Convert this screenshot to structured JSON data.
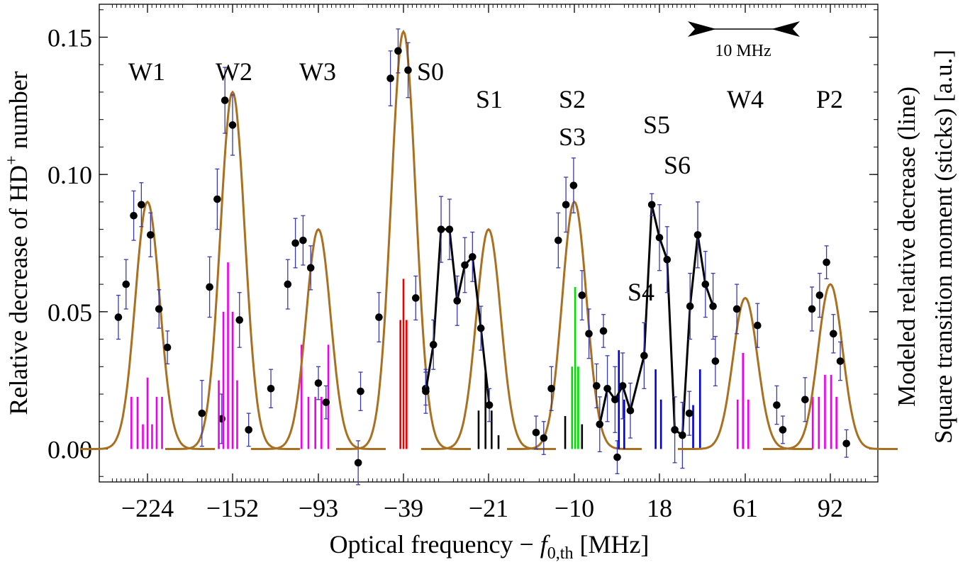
{
  "chart_data": {
    "type": "scatter",
    "y_axis_label": "Relative decrease of HD⁺ number",
    "y_axis_label_parts": {
      "pre": "Relative decrease of HD",
      "sup": "+",
      "post": " number"
    },
    "right_axis_label_line1": "Modeled relative decrease (line)",
    "right_axis_label_line2": "Square transition moment (sticks) [a.u.]",
    "x_axis_label": "Optical frequency − f0,th [MHz]",
    "x_axis_label_parts": {
      "pre": "Optical frequency − ",
      "italic": "f",
      "sub": "0,th",
      "post": " [MHz]"
    },
    "ylim": [
      -0.012,
      0.162
    ],
    "yticks": [
      {
        "value": 0.0,
        "label": "0.00"
      },
      {
        "value": 0.05,
        "label": "0.05"
      },
      {
        "value": 0.1,
        "label": "0.10"
      },
      {
        "value": 0.15,
        "label": "0.15"
      }
    ],
    "scale_bar_label": "10 MHz",
    "colors": {
      "model": "#a87020",
      "points": "#000000",
      "errorbars": "#3a3aaa",
      "stick_magenta": "#ee00ee",
      "stick_red": "#ee0000",
      "stick_black": "#000000",
      "stick_green": "#00dd00",
      "stick_blue": "#0000dd",
      "fit_black": "#000000"
    },
    "panels": [
      {
        "tick": "-224",
        "tick_label": "−224",
        "center_offset": 0.0,
        "labels": [
          {
            "text": "W1"
          }
        ],
        "model": [
          {
            "amp": 0.09,
            "center": 0.0,
            "sigma": 1.6
          }
        ],
        "points": [
          [
            -3.8,
            0.048,
            0.008
          ],
          [
            -2.8,
            0.06,
            0.009
          ],
          [
            -1.8,
            0.085,
            0.009
          ],
          [
            -0.8,
            0.089,
            0.008
          ],
          [
            0.4,
            0.078,
            0.008
          ],
          [
            1.5,
            0.051,
            0.007
          ],
          [
            2.6,
            0.037,
            0.006
          ],
          [
            9.7,
            0.011,
            0.009
          ]
        ],
        "sticks": {
          "color": "magenta",
          "lines": [
            [
              -2.1,
              0.019
            ],
            [
              -1.3,
              0.019
            ],
            [
              -0.6,
              0.009
            ],
            [
              0.0,
              0.026
            ],
            [
              0.6,
              0.009
            ],
            [
              1.2,
              0.019
            ],
            [
              1.9,
              0.019
            ]
          ]
        }
      },
      {
        "tick": "-152",
        "tick_label": "−152",
        "center_offset": 0.0,
        "labels": [
          {
            "text": "W2"
          }
        ],
        "model": [
          {
            "amp": 0.13,
            "center": 0.0,
            "sigma": 1.6
          }
        ],
        "points": [
          [
            -4.0,
            0.013,
            0.012
          ],
          [
            -3.0,
            0.059,
            0.011
          ],
          [
            -2.0,
            0.091,
            0.011
          ],
          [
            -1.0,
            0.127,
            0.012
          ],
          [
            0.0,
            0.118,
            0.011
          ],
          [
            0.9,
            0.047,
            0.01
          ],
          [
            2.1,
            0.007,
            0.006
          ]
        ],
        "sticks": {
          "color": "magenta",
          "lines": [
            [
              -1.8,
              0.025
            ],
            [
              -1.2,
              0.05
            ],
            [
              -0.6,
              0.068
            ],
            [
              0.0,
              0.05
            ],
            [
              0.6,
              0.025
            ]
          ]
        }
      },
      {
        "tick": "-93",
        "tick_label": "−93",
        "center_offset": 0.0,
        "labels": [
          {
            "text": "W3"
          }
        ],
        "model": [
          {
            "amp": 0.08,
            "center": 0.0,
            "sigma": 1.6
          }
        ],
        "points": [
          [
            -6.2,
            0.022,
            0.007
          ],
          [
            -4.0,
            0.06,
            0.009
          ],
          [
            -3.0,
            0.075,
            0.009
          ],
          [
            -2.0,
            0.076,
            0.009
          ],
          [
            -1.0,
            0.066,
            0.008
          ],
          [
            0.0,
            0.024,
            0.006
          ],
          [
            1.0,
            0.017,
            0.006
          ],
          [
            5.2,
            -0.005,
            0.008
          ]
        ],
        "sticks": {
          "color": "magenta",
          "lines": [
            [
              -2.2,
              0.038
            ],
            [
              -1.3,
              0.019
            ],
            [
              -0.4,
              0.019
            ],
            [
              0.4,
              0.019
            ],
            [
              1.3,
              0.038
            ]
          ]
        }
      },
      {
        "tick": "-39",
        "tick_label": "−39",
        "center_offset": 0.0,
        "labels": [
          {
            "text": "S0"
          }
        ],
        "model": [
          {
            "amp": 0.152,
            "center": 0.0,
            "sigma": 1.6
          }
        ],
        "points": [
          [
            -5.6,
            0.021,
            0.007
          ],
          [
            -3.2,
            0.048,
            0.009
          ],
          [
            -1.7,
            0.135,
            0.01
          ],
          [
            -0.7,
            0.145,
            0.008
          ],
          [
            0.6,
            0.138,
            0.01
          ],
          [
            1.6,
            0.055,
            0.008
          ],
          [
            2.9,
            0.022,
            0.006
          ]
        ],
        "sticks": {
          "color": "red",
          "lines": [
            [
              -0.4,
              0.047
            ],
            [
              0.0,
              0.062
            ],
            [
              0.4,
              0.047
            ]
          ]
        }
      },
      {
        "tick": "-21",
        "tick_label": "−21",
        "center_offset": 0.0,
        "labels": [
          {
            "text": "S1"
          }
        ],
        "model": [
          {
            "amp": 0.08,
            "center": 0.0,
            "sigma": 1.6
          }
        ],
        "points": [
          [
            -8.2,
            0.021,
            0.008
          ],
          [
            -7.2,
            0.038,
            0.009
          ],
          [
            -6.2,
            0.08,
            0.012
          ],
          [
            -5.1,
            0.08,
            0.011
          ],
          [
            -4.1,
            0.054,
            0.009
          ],
          [
            -3.1,
            0.067,
            0.01
          ],
          [
            -2.1,
            0.07,
            0.009
          ],
          [
            -1.0,
            0.044,
            0.008
          ],
          [
            0.1,
            0.016,
            0.006
          ]
        ],
        "fit_line": [
          [
            -8.2,
            0.021
          ],
          [
            -7.2,
            0.038
          ],
          [
            -6.2,
            0.08
          ],
          [
            -5.1,
            0.08
          ],
          [
            -4.1,
            0.054
          ],
          [
            -3.1,
            0.067
          ],
          [
            -2.1,
            0.07
          ],
          [
            -1.0,
            0.044
          ],
          [
            0.1,
            0.016
          ]
        ],
        "sticks": {
          "color": "black",
          "lines": [
            [
              -1.3,
              0.014
            ],
            [
              -0.4,
              0.028
            ],
            [
              0.4,
              0.014
            ],
            [
              1.3,
              0.005
            ]
          ]
        }
      },
      {
        "tick": "-10",
        "tick_label": "−10",
        "center_offset": 0.0,
        "labels": [
          {
            "text": "S2"
          },
          {
            "text": "S3"
          }
        ],
        "model": [
          {
            "amp": 0.09,
            "center": 0.0,
            "sigma": 1.6
          }
        ],
        "points": [
          [
            -5.0,
            0.006,
            0.006
          ],
          [
            -4.0,
            0.004,
            0.006
          ],
          [
            -3.0,
            0.022,
            0.008
          ],
          [
            -2.1,
            0.076,
            0.01
          ],
          [
            -1.1,
            0.089,
            0.01
          ],
          [
            -0.1,
            0.096,
            0.01
          ],
          [
            1.0,
            0.056,
            0.009
          ],
          [
            1.9,
            0.042,
            0.009
          ],
          [
            2.9,
            0.023,
            0.008
          ],
          [
            3.8,
            0.043,
            0.006
          ],
          [
            5.6,
            -0.003,
            0.006
          ]
        ],
        "sticks": {
          "color": "green",
          "lines": [
            [
              -0.3,
              0.03
            ],
            [
              0.1,
              0.059
            ],
            [
              0.5,
              0.03
            ]
          ],
          "extra_color": "black",
          "extra": [
            [
              -1.2,
              0.012
            ],
            [
              1.0,
              0.009
            ]
          ]
        }
      },
      {
        "tick": "18",
        "tick_label": "18",
        "center_offset": 0.0,
        "labels": [
          {
            "text": "S4"
          },
          {
            "text": "S5"
          },
          {
            "text": "S6"
          }
        ],
        "model": [],
        "points": [
          [
            -7.8,
            0.009,
            0.01
          ],
          [
            -6.8,
            0.022,
            0.012
          ],
          [
            -5.8,
            0.018,
            0.012
          ],
          [
            -4.8,
            0.023,
            0.012
          ],
          [
            -3.8,
            0.014,
            0.01
          ],
          [
            -2.0,
            0.034,
            0.012
          ],
          [
            -1.0,
            0.089,
            0.004
          ],
          [
            0.0,
            0.077,
            0.012
          ],
          [
            1.0,
            0.069,
            0.012
          ],
          [
            2.0,
            0.007,
            0.012
          ],
          [
            3.0,
            0.005,
            0.012
          ],
          [
            4.0,
            0.052,
            0.012
          ],
          [
            5.0,
            0.078,
            0.012
          ],
          [
            6.0,
            0.06,
            0.012
          ],
          [
            7.0,
            0.052,
            0.012
          ]
        ],
        "fit_line": [
          [
            -7.8,
            0.009
          ],
          [
            -6.8,
            0.022
          ],
          [
            -5.8,
            0.018
          ],
          [
            -4.8,
            0.023
          ],
          [
            -3.8,
            0.014
          ],
          [
            -2.0,
            0.034
          ],
          [
            -1.0,
            0.089
          ],
          [
            0.0,
            0.077
          ],
          [
            1.0,
            0.069
          ],
          [
            2.0,
            0.007
          ],
          [
            3.0,
            0.005
          ],
          [
            4.0,
            0.052
          ],
          [
            5.0,
            0.078
          ],
          [
            6.0,
            0.06
          ],
          [
            7.0,
            0.052
          ]
        ],
        "sticks": {
          "color": "blue",
          "lines": [
            [
              -5.3,
              0.036
            ],
            [
              -4.6,
              0.018
            ],
            [
              -0.5,
              0.029
            ],
            [
              0.2,
              0.018
            ],
            [
              4.4,
              0.016
            ],
            [
              5.3,
              0.029
            ]
          ]
        }
      },
      {
        "tick": "61",
        "tick_label": "61",
        "center_offset": 0.0,
        "labels": [
          {
            "text": "W4"
          }
        ],
        "model": [
          {
            "amp": 0.055,
            "center": 0.0,
            "sigma": 1.6
          }
        ],
        "points": [
          [
            -7.3,
            0.013,
            0.008
          ],
          [
            -3.9,
            0.032,
            0.009
          ],
          [
            -1.1,
            0.051,
            0.009
          ],
          [
            1.6,
            0.045,
            0.008
          ],
          [
            4.9,
            0.007,
            0.005
          ]
        ],
        "sticks": {
          "color": "magenta",
          "lines": [
            [
              -1.0,
              0.018
            ],
            [
              -0.3,
              0.035
            ],
            [
              0.4,
              0.018
            ]
          ]
        }
      },
      {
        "tick": "92",
        "tick_label": "92",
        "center_offset": 0.0,
        "labels": [
          {
            "text": "P2"
          }
        ],
        "model": [
          {
            "amp": 0.06,
            "center": 0.0,
            "sigma": 1.6
          }
        ],
        "points": [
          [
            -7.0,
            0.016,
            0.007
          ],
          [
            -3.3,
            0.018,
            0.008
          ],
          [
            -2.4,
            0.051,
            0.008
          ],
          [
            -1.4,
            0.056,
            0.008
          ],
          [
            -0.5,
            0.068,
            0.006
          ],
          [
            0.4,
            0.042,
            0.007
          ],
          [
            1.3,
            0.032,
            0.007
          ],
          [
            2.1,
            0.002,
            0.005
          ]
        ],
        "sticks": {
          "color": "magenta",
          "lines": [
            [
              -2.3,
              0.019
            ],
            [
              -1.5,
              0.019
            ],
            [
              -0.7,
              0.027
            ],
            [
              0.1,
              0.027
            ],
            [
              0.8,
              0.019
            ]
          ]
        }
      }
    ]
  }
}
